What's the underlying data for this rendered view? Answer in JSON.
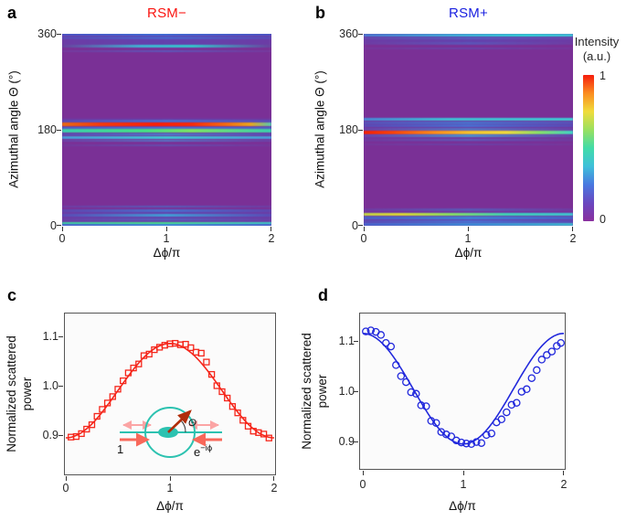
{
  "panels": {
    "a": {
      "letter": "a",
      "title": "RSM−",
      "xlabel": "Δϕ/π",
      "ylabel": "Azimuthal angle Θ (°)",
      "xticks": [
        "0",
        "1",
        "2"
      ],
      "yticks": [
        "360",
        "180",
        "0"
      ]
    },
    "b": {
      "letter": "b",
      "title": "RSM+",
      "xlabel": "Δϕ/π",
      "ylabel": "Azimuthal angle Θ (°)",
      "xticks": [
        "0",
        "1",
        "2"
      ],
      "yticks": [
        "360",
        "180",
        "0"
      ]
    },
    "c": {
      "letter": "c",
      "xlabel": "Δϕ/π",
      "ylabel_line1": "Normalized scattered",
      "ylabel_line2": "power",
      "xticks": [
        "0",
        "1",
        "2"
      ],
      "yticks": [
        "1.1",
        "1.0",
        "0.9"
      ]
    },
    "d": {
      "letter": "d",
      "xlabel": "Δϕ/π",
      "ylabel_line1": "Normalized scattered",
      "ylabel_line2": "power",
      "xticks": [
        "0",
        "1",
        "2"
      ],
      "yticks": [
        "1.1",
        "1.0",
        "0.9"
      ]
    }
  },
  "colorbar": {
    "title_line1": "Intensity",
    "title_line2": "(a.u.)",
    "max_label": "1",
    "min_label": "0",
    "stops_bottom_to_top": [
      "#8a2f9e",
      "#6a48c0",
      "#4a78e0",
      "#3fc0da",
      "#42dca8",
      "#9ae060",
      "#f0dc3c",
      "#fb8c20",
      "#f51d0d"
    ]
  },
  "inset": {
    "incident_amplitude_label": "1",
    "counter_amplitude_base": "e",
    "counter_amplitude_sup": "−iϕ",
    "angle_label": "Θ",
    "ring_color": "#2cc2b0",
    "arrow_color": "#b02d0a",
    "wave_arrow_color": "#f8685a",
    "faint_arrow_color": "#fba4a4"
  },
  "colors": {
    "rsm_minus": "#fa1410",
    "rsm_plus": "#1a20e0",
    "heatmap_background": "#7a3096",
    "panel_letter": "#000000",
    "axis_text": "#222222",
    "scatter_red": "#f5261b",
    "scatter_blue": "#2128dc"
  },
  "chart_data": [
    {
      "type": "heatmap",
      "panel": "a",
      "title": "RSM−",
      "xlabel": "Δϕ/π",
      "ylabel": "Azimuthal angle Θ (°)",
      "xlim": [
        0,
        2
      ],
      "ylim": [
        0,
        360
      ],
      "intensity_range": [
        0,
        1
      ],
      "background": "#7a3096",
      "bands": [
        {
          "theta": 350,
          "h": 24,
          "g": [
            "#6a3fa8",
            "#6046b2",
            "#6a3fa8"
          ],
          "o": 0.85
        },
        {
          "theta": 14,
          "h": 30,
          "g": [
            "#6a3fa8",
            "#6046b2",
            "#6a3fa8"
          ],
          "o": 0.85
        },
        {
          "theta": 182,
          "h": 40,
          "g": [
            "#6f3ba2",
            "#693fa9",
            "#6f3ba2"
          ],
          "o": 0.6
        },
        {
          "theta": 359,
          "h": 6,
          "g": [
            "#4a55c4",
            "#3f6ed6 45%",
            "#4a55c4"
          ]
        },
        {
          "theta": 353,
          "h": 5,
          "g": [
            "#5a4ab6",
            "#4a64cc 50%",
            "#5a4ab6"
          ]
        },
        {
          "theta": 337,
          "h": 5,
          "g": [
            "#69419f",
            "#3fb4d4 38%",
            "#33c6cc 62%",
            "#69419f"
          ]
        },
        {
          "theta": 327,
          "h": 4,
          "g": [
            "#753a9e",
            "#5a5cbe",
            "#753a9e"
          ],
          "o": 0.9
        },
        {
          "theta": 196,
          "h": 5,
          "g": [
            "#5a4ab6",
            "#4a6ed0 50%",
            "#5a4ab6"
          ]
        },
        {
          "theta": 190,
          "h": 7,
          "g": [
            "#e86a14",
            "#f43a0c 18%",
            "#fa1f06 45%",
            "#f82a08 62%",
            "#f56a10 78%",
            "#e8a61e 90%",
            "#52c8b4"
          ]
        },
        {
          "theta": 184,
          "h": 4,
          "g": [
            "#4a64cc",
            "#4a78d4",
            "#4a64cc"
          ]
        },
        {
          "theta": 178,
          "h": 6,
          "g": [
            "#3bcfae",
            "#46df85 40%",
            "#7ce464 62%",
            "#3bcfae"
          ]
        },
        {
          "theta": 172,
          "h": 4,
          "g": [
            "#5a4ab6",
            "#4a80d0",
            "#5a4ab6"
          ]
        },
        {
          "theta": 166,
          "h": 5,
          "g": [
            "#4a9ad8",
            "#3fc6d2 50%",
            "#4a9ad8"
          ]
        },
        {
          "theta": 159,
          "h": 4,
          "g": [
            "#6a44aa",
            "#527cc8",
            "#6a44aa"
          ],
          "o": 0.9
        },
        {
          "theta": 151,
          "h": 4,
          "g": [
            "#73399d",
            "#5f54b4",
            "#73399d"
          ],
          "o": 0.8
        },
        {
          "theta": 36,
          "h": 4,
          "g": [
            "#6f3da4",
            "#5560bc",
            "#6f3da4"
          ],
          "o": 0.9
        },
        {
          "theta": 28,
          "h": 5,
          "g": [
            "#5f46b0",
            "#4a6ecc 50%",
            "#5f46b0"
          ]
        },
        {
          "theta": 20,
          "h": 5,
          "g": [
            "#5a4ab6",
            "#419ed6 50%",
            "#5a4ab6"
          ]
        },
        {
          "theta": 12,
          "h": 4,
          "g": [
            "#6a41a8",
            "#5564c0",
            "#6a41a8"
          ],
          "o": 0.9
        },
        {
          "theta": 5,
          "h": 5,
          "g": [
            "#3fcfa2",
            "#49de86 45%",
            "#3fc9c4"
          ]
        },
        {
          "theta": 1,
          "h": 5,
          "g": [
            "#4a64cc",
            "#3f86d8 50%",
            "#4a64cc"
          ]
        }
      ]
    },
    {
      "type": "heatmap",
      "panel": "b",
      "title": "RSM+",
      "xlabel": "Δϕ/π",
      "ylabel": "Azimuthal angle Θ (°)",
      "xlim": [
        0,
        2
      ],
      "ylim": [
        0,
        360
      ],
      "intensity_range": [
        0,
        1
      ],
      "background": "#7a3096",
      "bands": [
        {
          "theta": 351,
          "h": 20,
          "g": [
            "#6a3fa8",
            "#6046b2",
            "#6a3fa8"
          ],
          "o": 0.85
        },
        {
          "theta": 12,
          "h": 28,
          "g": [
            "#6a3fa8",
            "#6046b2",
            "#6a3fa8"
          ],
          "o": 0.85
        },
        {
          "theta": 180,
          "h": 44,
          "g": [
            "#6f3ba2",
            "#693fa9",
            "#6f3ba2"
          ],
          "o": 0.6
        },
        {
          "theta": 357,
          "h": 5,
          "g": [
            "#4a78d0",
            "#3fb0d8 45%",
            "#2fd2d6 78%",
            "#3fc2d6"
          ]
        },
        {
          "theta": 351,
          "h": 4,
          "g": [
            "#654aae",
            "#5560c0",
            "#654aae"
          ],
          "o": 0.9
        },
        {
          "theta": 342,
          "h": 4,
          "g": [
            "#6f3da4",
            "#5a58ba",
            "#6f3da4"
          ],
          "o": 0.85
        },
        {
          "theta": 333,
          "h": 4,
          "g": [
            "#75399e",
            "#6548ae",
            "#75399e"
          ],
          "o": 0.8
        },
        {
          "theta": 199,
          "h": 5,
          "g": [
            "#4a86d4",
            "#3fc0d4 40%",
            "#3fc9d2"
          ]
        },
        {
          "theta": 193,
          "h": 4,
          "g": [
            "#5a50b8",
            "#4a70cc",
            "#5a50b8"
          ]
        },
        {
          "theta": 187,
          "h": 5,
          "g": [
            "#5a4ab6",
            "#4a6ed0 50%",
            "#5a4ab6"
          ]
        },
        {
          "theta": 181,
          "h": 4,
          "g": [
            "#6a44aa",
            "#527cc8",
            "#6a44aa"
          ],
          "o": 0.9
        },
        {
          "theta": 175,
          "h": 7,
          "g": [
            "#f41f06",
            "#f8420a 14%",
            "#fb8c1a 34%",
            "#f4c62e 52%",
            "#eed83c 68%",
            "#86e06a 84%",
            "#3fd0c6"
          ]
        },
        {
          "theta": 169,
          "h": 4,
          "g": [
            "#6a44aa",
            "#4a9ad0 50%",
            "#6a44aa"
          ],
          "o": 0.9
        },
        {
          "theta": 161,
          "h": 4,
          "g": [
            "#713b9f",
            "#5a64be",
            "#713b9f"
          ],
          "o": 0.8
        },
        {
          "theta": 152,
          "h": 4,
          "g": [
            "#75399e",
            "#6548ae",
            "#75399e"
          ],
          "o": 0.7
        },
        {
          "theta": 30,
          "h": 4,
          "g": [
            "#6f3da4",
            "#5560bc",
            "#6f3da4"
          ],
          "o": 0.85
        },
        {
          "theta": 22,
          "h": 5,
          "g": [
            "#c2d244",
            "#dcd634 18%",
            "#8ce05e 40%",
            "#3fd2b4 68%",
            "#3fc2d0"
          ]
        },
        {
          "theta": 15,
          "h": 5,
          "g": [
            "#4a60c8",
            "#3f82d6 50%",
            "#4a60c8"
          ]
        },
        {
          "theta": 8,
          "h": 5,
          "g": [
            "#5a4ab6",
            "#4a6ed0 50%",
            "#5a4ab6"
          ]
        },
        {
          "theta": 2,
          "h": 5,
          "g": [
            "#4a64cc",
            "#3f8ed8 55%",
            "#3fb8d0"
          ]
        }
      ]
    },
    {
      "type": "scatter",
      "panel": "c",
      "marker": "square",
      "color": "#f5261b",
      "xlabel": "Δϕ/π",
      "ylabel": "Normalized scattered power",
      "xlim": [
        0,
        2
      ],
      "ylim": [
        0.82,
        1.15
      ],
      "xticks": [
        0,
        1,
        2
      ],
      "yticks": [
        0.9,
        1.0,
        1.1
      ],
      "fit": {
        "model": "y = offset + amplitude·cos(π·x)",
        "offset": 0.99,
        "amplitude": -0.0955
      },
      "points_x": [
        0.05,
        0.1,
        0.15,
        0.2,
        0.25,
        0.3,
        0.35,
        0.4,
        0.45,
        0.5,
        0.55,
        0.6,
        0.65,
        0.7,
        0.75,
        0.8,
        0.85,
        0.9,
        0.95,
        1.0,
        1.05,
        1.1,
        1.15,
        1.2,
        1.25,
        1.3,
        1.35,
        1.4,
        1.45,
        1.5,
        1.55,
        1.6,
        1.65,
        1.7,
        1.75,
        1.8,
        1.85,
        1.9,
        1.95
      ],
      "points_y": [
        0.896,
        0.897,
        0.903,
        0.912,
        0.921,
        0.938,
        0.952,
        0.965,
        0.978,
        0.993,
        1.01,
        1.026,
        1.036,
        1.044,
        1.061,
        1.064,
        1.073,
        1.078,
        1.082,
        1.085,
        1.086,
        1.083,
        1.084,
        1.077,
        1.068,
        1.066,
        1.048,
        1.023,
        1.0,
        0.988,
        0.975,
        0.958,
        0.945,
        0.93,
        0.918,
        0.908,
        0.905,
        0.902,
        0.894
      ]
    },
    {
      "type": "scatter",
      "panel": "d",
      "marker": "circle",
      "color": "#2128dc",
      "xlabel": "Δϕ/π",
      "ylabel": "Normalized scattered power",
      "xlim": [
        0,
        2
      ],
      "ylim": [
        0.835,
        1.16
      ],
      "xticks": [
        0,
        1,
        2
      ],
      "yticks": [
        0.9,
        1.0,
        1.1
      ],
      "fit": {
        "model": "y = offset + amplitude·cos(π·x)",
        "offset": 1.005,
        "amplitude": 0.11
      },
      "points_x": [
        0.03,
        0.08,
        0.13,
        0.18,
        0.23,
        0.28,
        0.33,
        0.38,
        0.43,
        0.48,
        0.53,
        0.58,
        0.63,
        0.68,
        0.73,
        0.78,
        0.83,
        0.88,
        0.93,
        0.98,
        1.03,
        1.08,
        1.13,
        1.18,
        1.23,
        1.28,
        1.33,
        1.38,
        1.43,
        1.48,
        1.53,
        1.58,
        1.63,
        1.68,
        1.73,
        1.78,
        1.83,
        1.88,
        1.93,
        1.97
      ],
      "points_y": [
        1.119,
        1.121,
        1.118,
        1.112,
        1.096,
        1.089,
        1.052,
        1.03,
        1.018,
        0.998,
        0.995,
        0.972,
        0.97,
        0.941,
        0.937,
        0.919,
        0.914,
        0.91,
        0.902,
        0.898,
        0.896,
        0.895,
        0.899,
        0.897,
        0.913,
        0.916,
        0.938,
        0.944,
        0.958,
        0.973,
        0.977,
        0.999,
        1.004,
        1.026,
        1.042,
        1.063,
        1.072,
        1.079,
        1.09,
        1.096
      ]
    }
  ]
}
